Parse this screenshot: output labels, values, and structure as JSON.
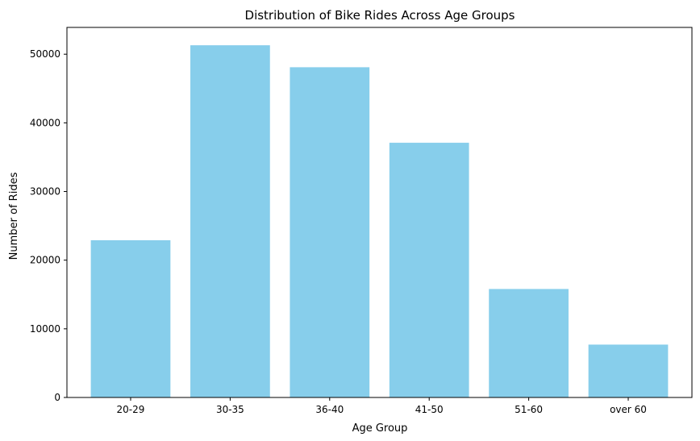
{
  "chart_data": {
    "type": "bar",
    "title": "Distribution of Bike Rides Across Age Groups",
    "xlabel": "Age Group",
    "ylabel": "Number of Rides",
    "categories": [
      "20-29",
      "30-35",
      "36-40",
      "41-50",
      "51-60",
      "over 60"
    ],
    "values": [
      22900,
      51300,
      48100,
      37100,
      15800,
      7700
    ],
    "ylim": [
      0,
      53900
    ],
    "yticks": [
      0,
      10000,
      20000,
      30000,
      40000,
      50000
    ],
    "ytick_labels": [
      "0",
      "10000",
      "20000",
      "30000",
      "40000",
      "50000"
    ],
    "grid": false,
    "legend": "none",
    "bar_color": "#87ceeb"
  }
}
